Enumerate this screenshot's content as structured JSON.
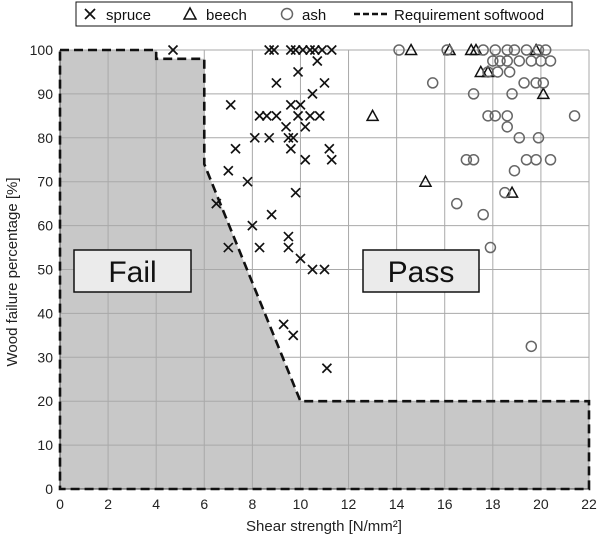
{
  "chart_data": {
    "type": "scatter",
    "xlabel": "Shear strength [N/mm²]",
    "ylabel": "Wood failure percentage [%]",
    "xlim": [
      0,
      22
    ],
    "ylim": [
      0,
      100
    ],
    "xticks": [
      "0",
      "2",
      "4",
      "6",
      "8",
      "10",
      "12",
      "14",
      "16",
      "18",
      "20",
      "22"
    ],
    "yticks": [
      "0",
      "10",
      "20",
      "30",
      "40",
      "50",
      "60",
      "70",
      "80",
      "90",
      "100"
    ],
    "grid": true,
    "legend_position": "top",
    "legend": {
      "spruce": "spruce",
      "beech": "beech",
      "ash": "ash",
      "requirement": "Requirement softwood"
    },
    "regions": {
      "fail": "Fail",
      "pass": "Pass"
    },
    "requirement_line": {
      "name": "Requirement softwood",
      "points": [
        [
          0,
          100
        ],
        [
          4,
          100
        ],
        [
          4,
          98
        ],
        [
          6,
          98
        ],
        [
          6,
          74
        ],
        [
          10,
          20
        ],
        [
          22,
          20
        ]
      ]
    },
    "series": [
      {
        "name": "spruce",
        "marker": "x",
        "color": "#111111",
        "points": [
          [
            4.7,
            100
          ],
          [
            8.7,
            100
          ],
          [
            8.9,
            100
          ],
          [
            9.6,
            100
          ],
          [
            9.8,
            100
          ],
          [
            10.1,
            100
          ],
          [
            10.4,
            100
          ],
          [
            10.6,
            100
          ],
          [
            10.9,
            100
          ],
          [
            11.3,
            100
          ],
          [
            10.7,
            97.5
          ],
          [
            9.9,
            95
          ],
          [
            9.0,
            92.5
          ],
          [
            11.0,
            92.5
          ],
          [
            10.5,
            90
          ],
          [
            9.6,
            87.5
          ],
          [
            7.1,
            87.5
          ],
          [
            10.0,
            87.5
          ],
          [
            8.3,
            85
          ],
          [
            8.6,
            85
          ],
          [
            9.0,
            85
          ],
          [
            10.8,
            85
          ],
          [
            10.4,
            85
          ],
          [
            9.9,
            85
          ],
          [
            10.2,
            82.5
          ],
          [
            9.4,
            82.5
          ],
          [
            8.1,
            80
          ],
          [
            8.7,
            80
          ],
          [
            9.5,
            80
          ],
          [
            9.7,
            80
          ],
          [
            7.3,
            77.5
          ],
          [
            9.6,
            77.5
          ],
          [
            11.2,
            77.5
          ],
          [
            10.2,
            75
          ],
          [
            11.3,
            75
          ],
          [
            7.0,
            72.5
          ],
          [
            7.8,
            70
          ],
          [
            9.8,
            67.5
          ],
          [
            6.5,
            65
          ],
          [
            8.8,
            62.5
          ],
          [
            8.0,
            60
          ],
          [
            9.5,
            57.5
          ],
          [
            7.0,
            55
          ],
          [
            8.3,
            55
          ],
          [
            9.5,
            55
          ],
          [
            10.0,
            52.5
          ],
          [
            10.5,
            50
          ],
          [
            11.0,
            50
          ],
          [
            9.3,
            37.5
          ],
          [
            9.7,
            35
          ],
          [
            11.1,
            27.5
          ]
        ]
      },
      {
        "name": "beech",
        "marker": "triangle",
        "color": "#111111",
        "points": [
          [
            14.6,
            100
          ],
          [
            16.2,
            100
          ],
          [
            17.1,
            100
          ],
          [
            17.3,
            100
          ],
          [
            19.8,
            100
          ],
          [
            17.5,
            95
          ],
          [
            17.8,
            95
          ],
          [
            20.1,
            90
          ],
          [
            13.0,
            85
          ],
          [
            15.2,
            70
          ],
          [
            18.8,
            67.5
          ]
        ]
      },
      {
        "name": "ash",
        "marker": "circle",
        "color": "#666666",
        "points": [
          [
            14.1,
            100
          ],
          [
            16.1,
            100
          ],
          [
            17.6,
            100
          ],
          [
            18.1,
            100
          ],
          [
            18.6,
            100
          ],
          [
            18.9,
            100
          ],
          [
            19.4,
            100
          ],
          [
            19.9,
            100
          ],
          [
            20.2,
            100
          ],
          [
            18.0,
            97.5
          ],
          [
            18.3,
            97.5
          ],
          [
            18.6,
            97.5
          ],
          [
            19.1,
            97.5
          ],
          [
            19.6,
            97.5
          ],
          [
            20.0,
            97.5
          ],
          [
            20.4,
            97.5
          ],
          [
            17.8,
            95
          ],
          [
            18.2,
            95
          ],
          [
            18.7,
            95
          ],
          [
            15.5,
            92.5
          ],
          [
            19.3,
            92.5
          ],
          [
            19.8,
            92.5
          ],
          [
            20.1,
            92.5
          ],
          [
            17.2,
            90
          ],
          [
            18.8,
            90
          ],
          [
            17.8,
            85
          ],
          [
            18.1,
            85
          ],
          [
            18.6,
            85
          ],
          [
            21.4,
            85
          ],
          [
            18.6,
            82.5
          ],
          [
            19.1,
            80
          ],
          [
            19.9,
            80
          ],
          [
            16.9,
            75
          ],
          [
            17.2,
            75
          ],
          [
            19.4,
            75
          ],
          [
            20.4,
            75
          ],
          [
            19.8,
            75
          ],
          [
            18.9,
            72.5
          ],
          [
            18.5,
            67.5
          ],
          [
            16.5,
            65
          ],
          [
            17.6,
            62.5
          ],
          [
            17.9,
            55
          ],
          [
            19.6,
            32.5
          ]
        ]
      }
    ]
  }
}
